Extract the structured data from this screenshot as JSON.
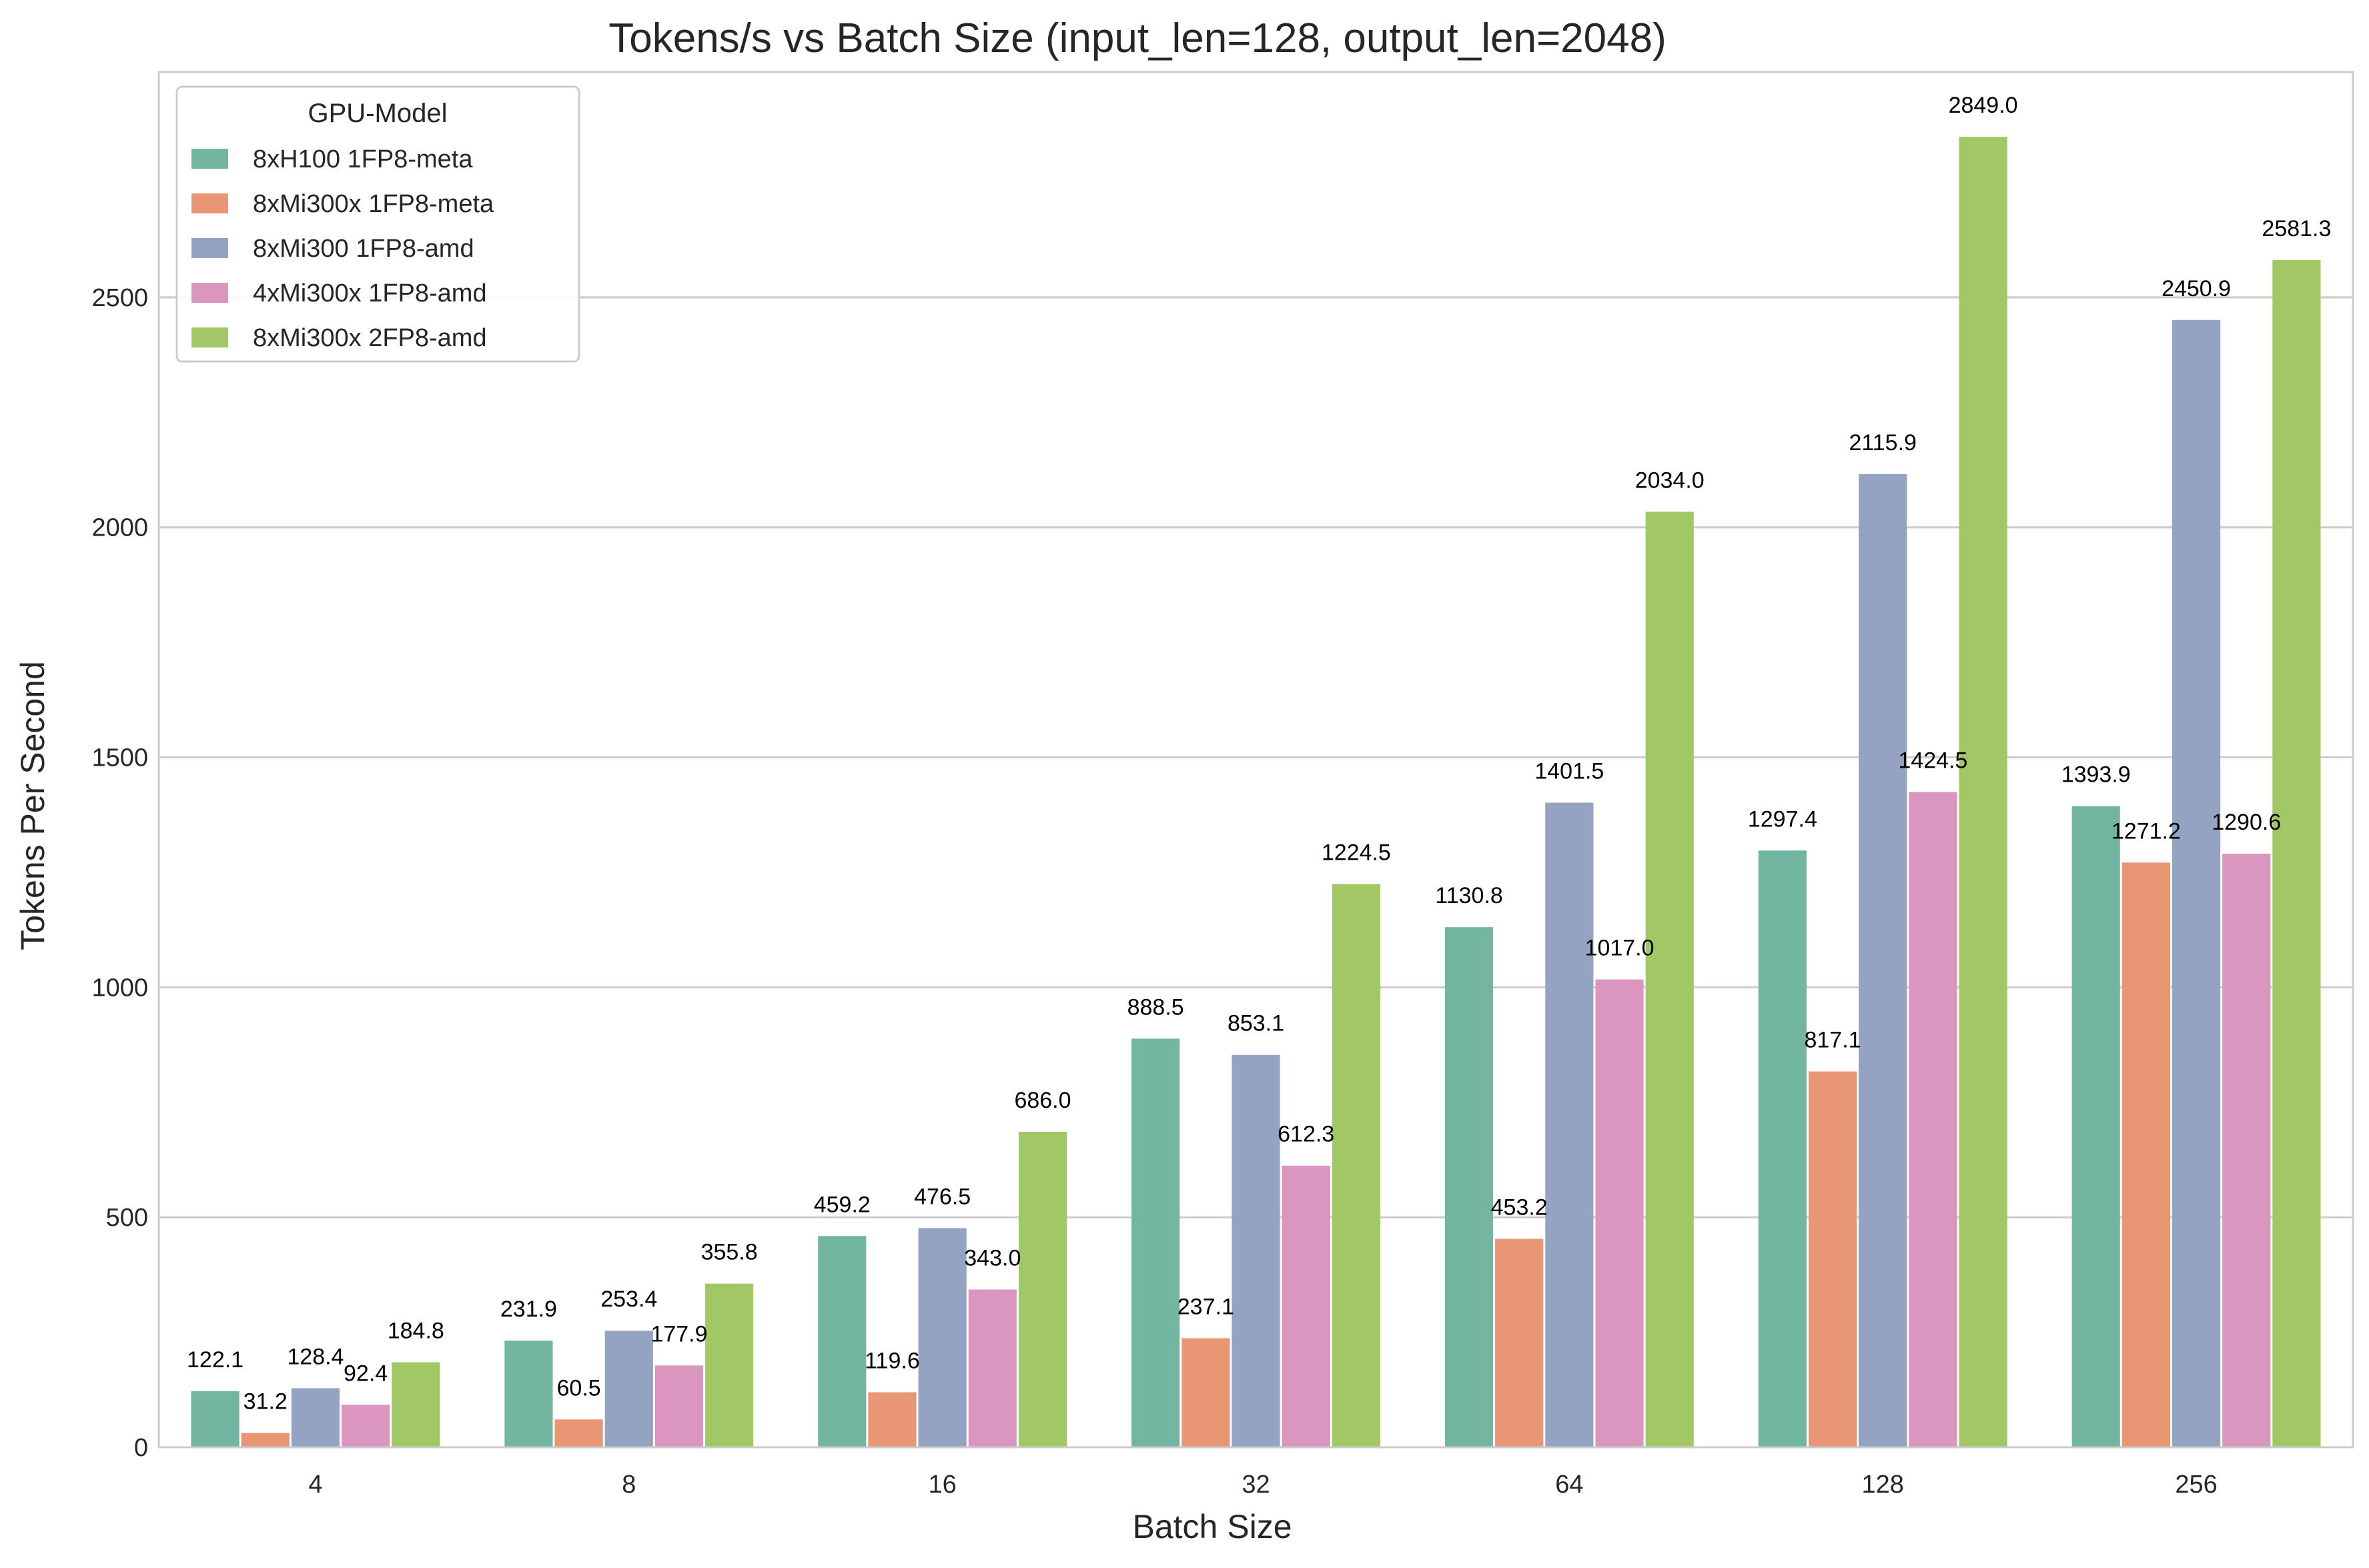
{
  "chart_data": {
    "type": "bar",
    "title": "Tokens/s vs Batch Size (input_len=128, output_len=2048)",
    "xlabel": "Batch Size",
    "ylabel": "Tokens Per Second",
    "categories": [
      "4",
      "8",
      "16",
      "32",
      "64",
      "128",
      "256"
    ],
    "ylim": [
      0,
      2990
    ],
    "yticks": [
      0,
      500,
      1000,
      1500,
      2000,
      2500
    ],
    "grid": "horizontal",
    "legend": {
      "title": "GPU-Model",
      "placement": "top-left"
    },
    "series": [
      {
        "name": "8xH100 1FP8-meta",
        "color": "#72b6a1",
        "values": [
          122.1,
          231.9,
          459.2,
          888.5,
          1130.8,
          1297.4,
          1393.9
        ],
        "labels": [
          "122.1",
          "231.9",
          "459.2",
          "888.5",
          "1130.8",
          "1297.4",
          "1393.9"
        ]
      },
      {
        "name": "8xMi300x 1FP8-meta",
        "color": "#e99675",
        "values": [
          31.2,
          60.5,
          119.6,
          237.1,
          453.2,
          817.1,
          1271.2
        ],
        "labels": [
          "31.2",
          "60.5",
          "119.6",
          "237.1",
          "453.2",
          "817.1",
          "1271.2"
        ]
      },
      {
        "name": "8xMi300 1FP8-amd",
        "color": "#95a3c3",
        "values": [
          128.4,
          253.4,
          476.5,
          853.1,
          1401.5,
          2115.9,
          2450.9
        ],
        "labels": [
          "128.4",
          "253.4",
          "476.5",
          "853.1",
          "1401.5",
          "2115.9",
          "2450.9"
        ]
      },
      {
        "name": "4xMi300x 1FP8-amd",
        "color": "#db96c0",
        "values": [
          92.4,
          177.9,
          343.0,
          612.3,
          1017.0,
          1424.5,
          1290.6
        ],
        "labels": [
          "92.4",
          "177.9",
          "343.0",
          "612.3",
          "1017.0",
          "1424.5",
          "1290.6"
        ]
      },
      {
        "name": "8xMi300x 2FP8-amd",
        "color": "#a2c865",
        "values": [
          184.8,
          355.8,
          686.0,
          1224.5,
          2034.0,
          2849.0,
          2581.3
        ],
        "labels": [
          "184.8",
          "355.8",
          "686.0",
          "1224.5",
          "2034.0",
          "2849.0",
          "2581.3"
        ]
      }
    ]
  }
}
